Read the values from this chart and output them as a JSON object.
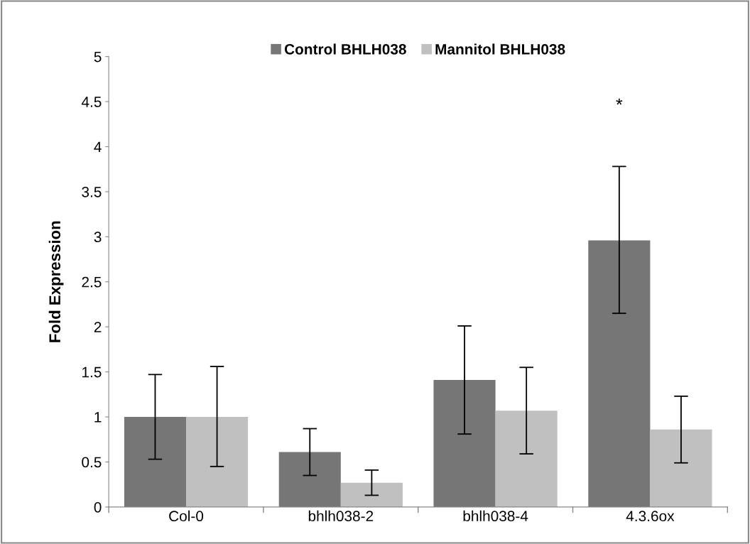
{
  "chart_data": {
    "type": "bar",
    "ylabel": "Fold Expression",
    "categories": [
      "Col-0",
      "bhlh038-2",
      "bhlh038-4",
      "4.3.6ox"
    ],
    "series": [
      {
        "name": "Control BHLH038",
        "color": "#767676",
        "values": [
          1.0,
          0.61,
          1.41,
          2.96
        ],
        "errors": [
          [
            0.53,
            1.47
          ],
          [
            0.35,
            0.87
          ],
          [
            0.81,
            2.01
          ],
          [
            2.15,
            3.78
          ]
        ]
      },
      {
        "name": "Mannitol BHLH038",
        "color": "#c0c0c0",
        "values": [
          1.0,
          0.27,
          1.07,
          0.86
        ],
        "errors": [
          [
            0.45,
            1.56
          ],
          [
            0.13,
            0.41
          ],
          [
            0.59,
            1.55
          ],
          [
            0.49,
            1.23
          ]
        ]
      }
    ],
    "ylim": [
      0,
      5
    ],
    "yticks": [
      0,
      0.5,
      1,
      1.5,
      2,
      2.5,
      3,
      3.5,
      4,
      4.5,
      5
    ],
    "grid": false,
    "legend": "top",
    "annotations": [
      "*"
    ]
  }
}
